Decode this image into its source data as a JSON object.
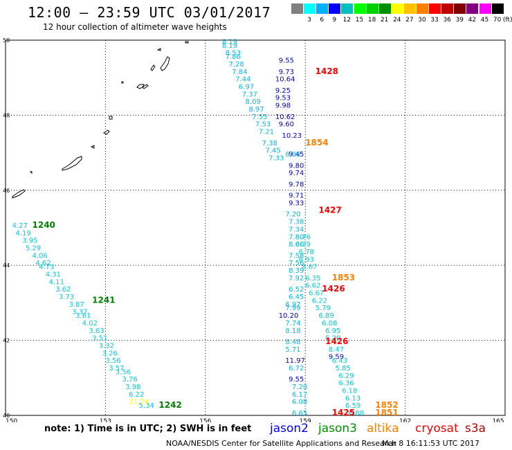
{
  "header": {
    "title": "12:00 – 23:59 UTC 03/01/2017",
    "subtitle": "12 hour collection of altimeter wave heights"
  },
  "legend": {
    "unit_label": "(ft)",
    "bins": [
      {
        "label": "",
        "color": "#808080"
      },
      {
        "label": "3",
        "color": "#00ffff"
      },
      {
        "label": "6",
        "color": "#00b0ff"
      },
      {
        "label": "9",
        "color": "#0000ff"
      },
      {
        "label": "12",
        "color": "#00c0c0"
      },
      {
        "label": "15",
        "color": "#00ff00"
      },
      {
        "label": "18",
        "color": "#00d000"
      },
      {
        "label": "21",
        "color": "#009000"
      },
      {
        "label": "24",
        "color": "#ffff00"
      },
      {
        "label": "27",
        "color": "#ffc000"
      },
      {
        "label": "30",
        "color": "#ff8000"
      },
      {
        "label": "33",
        "color": "#ff0000"
      },
      {
        "label": "36",
        "color": "#c00000"
      },
      {
        "label": "39",
        "color": "#800000"
      },
      {
        "label": "42",
        "color": "#800080"
      },
      {
        "label": "45",
        "color": "#ff00ff"
      },
      {
        "label": "70",
        "color": "#000000"
      }
    ]
  },
  "axes": {
    "lon_labels": [
      "150",
      "153",
      "156",
      "159",
      "162",
      "165"
    ],
    "lat_labels": [
      "50",
      "48",
      "46",
      "44",
      "42",
      "40"
    ],
    "lon_range": [
      150,
      165
    ],
    "lat_range": [
      40,
      50
    ]
  },
  "time_labels": [
    {
      "text": "1428",
      "lon": 159.3,
      "lat": 49.1,
      "color": "#ff0000"
    },
    {
      "text": "1854",
      "lon": 159.0,
      "lat": 47.2,
      "color": "#ff8000"
    },
    {
      "text": "1427",
      "lon": 159.4,
      "lat": 45.4,
      "color": "#ff0000"
    },
    {
      "text": "1853",
      "lon": 159.8,
      "lat": 43.6,
      "color": "#ff8000"
    },
    {
      "text": "1426",
      "lon": 159.5,
      "lat": 43.3,
      "color": "#ff0000"
    },
    {
      "text": "1426",
      "lon": 159.6,
      "lat": 41.9,
      "color": "#ff0000"
    },
    {
      "text": "1852",
      "lon": 161.1,
      "lat": 40.2,
      "color": "#ff8000"
    },
    {
      "text": "1851",
      "lon": 161.1,
      "lat": 40.0,
      "color": "#ff8000"
    },
    {
      "text": "1425",
      "lon": 159.8,
      "lat": 40.0,
      "color": "#ff0000"
    },
    {
      "text": "1240",
      "lon": 150.8,
      "lat": 45.0,
      "color": "#008000"
    },
    {
      "text": "1241",
      "lon": 152.6,
      "lat": 43.0,
      "color": "#008000"
    },
    {
      "text": "1242",
      "lon": 154.6,
      "lat": 40.2,
      "color": "#008000"
    }
  ],
  "tracks": {
    "jason2": {
      "color": "#0000cc",
      "points": [
        {
          "v": "9.55",
          "lon": 158.2,
          "lat": 49.4
        },
        {
          "v": "9.73",
          "lon": 158.2,
          "lat": 49.1
        },
        {
          "v": "10.64",
          "lon": 158.1,
          "lat": 48.9
        },
        {
          "v": "9.25",
          "lon": 158.1,
          "lat": 48.6
        },
        {
          "v": "9.53",
          "lon": 158.1,
          "lat": 48.4
        },
        {
          "v": "9.98",
          "lon": 158.1,
          "lat": 48.2
        },
        {
          "v": "10.62",
          "lon": 158.1,
          "lat": 47.9
        },
        {
          "v": "9.60",
          "lon": 158.2,
          "lat": 47.7
        },
        {
          "v": "10.23",
          "lon": 158.3,
          "lat": 47.4
        },
        {
          "v": "9.45",
          "lon": 158.5,
          "lat": 46.9
        },
        {
          "v": "9.80",
          "lon": 158.5,
          "lat": 46.6
        },
        {
          "v": "9.74",
          "lon": 158.5,
          "lat": 46.4
        },
        {
          "v": "9.78",
          "lon": 158.5,
          "lat": 46.1
        },
        {
          "v": "9.71",
          "lon": 158.5,
          "lat": 45.8
        },
        {
          "v": "9.33",
          "lon": 158.5,
          "lat": 45.6
        },
        {
          "v": "10.20",
          "lon": 158.2,
          "lat": 42.6
        },
        {
          "v": "11.97",
          "lon": 158.4,
          "lat": 41.4
        },
        {
          "v": "9.55",
          "lon": 158.5,
          "lat": 40.9
        },
        {
          "v": "9.59",
          "lon": 159.7,
          "lat": 41.5
        }
      ]
    },
    "jason3": {
      "color": "#009000",
      "points": []
    },
    "cyan_main": {
      "color": "#00b8e8",
      "points": [
        {
          "v": "8.19",
          "lon": 156.5,
          "lat": 49.9
        },
        {
          "v": "8.19",
          "lon": 156.5,
          "lat": 49.8
        },
        {
          "v": "8.53",
          "lon": 156.6,
          "lat": 49.6
        },
        {
          "v": "7.86",
          "lon": 156.6,
          "lat": 49.5
        },
        {
          "v": "7.28",
          "lon": 156.7,
          "lat": 49.3
        },
        {
          "v": "7.84",
          "lon": 156.8,
          "lat": 49.1
        },
        {
          "v": "7.44",
          "lon": 156.9,
          "lat": 48.9
        },
        {
          "v": "6.97",
          "lon": 157.0,
          "lat": 48.7
        },
        {
          "v": "7.37",
          "lon": 157.1,
          "lat": 48.5
        },
        {
          "v": "8.09",
          "lon": 157.2,
          "lat": 48.3
        },
        {
          "v": "8.97",
          "lon": 157.3,
          "lat": 48.1
        },
        {
          "v": "7.55",
          "lon": 157.4,
          "lat": 47.9
        },
        {
          "v": "7.53",
          "lon": 157.5,
          "lat": 47.7
        },
        {
          "v": "7.21",
          "lon": 157.6,
          "lat": 47.5
        },
        {
          "v": "7.38",
          "lon": 157.7,
          "lat": 47.2
        },
        {
          "v": "7.45",
          "lon": 157.8,
          "lat": 47.0
        },
        {
          "v": "7.33",
          "lon": 157.9,
          "lat": 46.8
        },
        {
          "v": "7.20",
          "lon": 158.4,
          "lat": 45.3
        },
        {
          "v": "7.38",
          "lon": 158.5,
          "lat": 45.1
        },
        {
          "v": "7.34",
          "lon": 158.5,
          "lat": 44.9
        },
        {
          "v": "7.80",
          "lon": 158.5,
          "lat": 44.7
        },
        {
          "v": "8.06",
          "lon": 158.5,
          "lat": 44.5
        },
        {
          "v": "7.58",
          "lon": 158.5,
          "lat": 44.2
        },
        {
          "v": "7.56",
          "lon": 158.5,
          "lat": 44.0
        },
        {
          "v": "8.39",
          "lon": 158.5,
          "lat": 43.8
        },
        {
          "v": "7.92",
          "lon": 158.5,
          "lat": 43.6
        },
        {
          "v": "6.52",
          "lon": 158.5,
          "lat": 43.3
        },
        {
          "v": "6.45",
          "lon": 158.5,
          "lat": 43.1
        },
        {
          "v": "6.97",
          "lon": 158.4,
          "lat": 42.9
        },
        {
          "v": "7.99",
          "lon": 158.4,
          "lat": 42.8
        },
        {
          "v": "7.74",
          "lon": 158.4,
          "lat": 42.4
        },
        {
          "v": "8.18",
          "lon": 158.4,
          "lat": 42.2
        },
        {
          "v": "8.48",
          "lon": 158.4,
          "lat": 41.9
        },
        {
          "v": "5.71",
          "lon": 158.4,
          "lat": 41.7
        },
        {
          "v": "6.72",
          "lon": 158.5,
          "lat": 41.2
        },
        {
          "v": "7.20",
          "lon": 158.6,
          "lat": 40.7
        },
        {
          "v": "6.17",
          "lon": 158.6,
          "lat": 40.5
        },
        {
          "v": "6.08",
          "lon": 158.6,
          "lat": 40.3
        },
        {
          "v": "6.65",
          "lon": 158.6,
          "lat": 40.0
        }
      ]
    },
    "cyan_second": {
      "color": "#00c8d8",
      "points": [
        {
          "v": "6.85",
          "lon": 158.4,
          "lat": 46.9
        },
        {
          "v": "8.76",
          "lon": 158.7,
          "lat": 44.7
        },
        {
          "v": "8.39",
          "lon": 158.7,
          "lat": 44.5
        },
        {
          "v": "6.78",
          "lon": 158.8,
          "lat": 44.3
        },
        {
          "v": "6.93",
          "lon": 158.8,
          "lat": 44.1
        },
        {
          "v": "8.67",
          "lon": 158.9,
          "lat": 43.9
        },
        {
          "v": "6.35",
          "lon": 159.0,
          "lat": 43.6
        },
        {
          "v": "6.62",
          "lon": 159.0,
          "lat": 43.4
        },
        {
          "v": "6.67",
          "lon": 159.1,
          "lat": 43.2
        },
        {
          "v": "6.22",
          "lon": 159.2,
          "lat": 43.0
        },
        {
          "v": "5.79",
          "lon": 159.3,
          "lat": 42.8
        },
        {
          "v": "6.89",
          "lon": 159.4,
          "lat": 42.6
        },
        {
          "v": "6.08",
          "lon": 159.5,
          "lat": 42.4
        },
        {
          "v": "6.95",
          "lon": 159.6,
          "lat": 42.2
        },
        {
          "v": "5.20",
          "lon": 159.6,
          "lat": 42.0
        },
        {
          "v": "8.47",
          "lon": 159.7,
          "lat": 41.7
        },
        {
          "v": "6.43",
          "lon": 159.8,
          "lat": 41.4
        },
        {
          "v": "5.85",
          "lon": 159.9,
          "lat": 41.2
        },
        {
          "v": "6.29",
          "lon": 160.0,
          "lat": 41.0
        },
        {
          "v": "6.36",
          "lon": 160.0,
          "lat": 40.8
        },
        {
          "v": "6.18",
          "lon": 160.1,
          "lat": 40.6
        },
        {
          "v": "6.13",
          "lon": 160.2,
          "lat": 40.4
        },
        {
          "v": "6.59",
          "lon": 160.2,
          "lat": 40.2
        },
        {
          "v": "6.88",
          "lon": 160.3,
          "lat": 40.0
        }
      ]
    },
    "cyan_west": {
      "color": "#00c8e0",
      "points": [
        {
          "v": "4.27",
          "lon": 150.2,
          "lat": 45.0
        },
        {
          "v": "4.19",
          "lon": 150.3,
          "lat": 44.8
        },
        {
          "v": "3.95",
          "lon": 150.5,
          "lat": 44.6
        },
        {
          "v": "5.29",
          "lon": 150.6,
          "lat": 44.4
        },
        {
          "v": "4.06",
          "lon": 150.8,
          "lat": 44.2
        },
        {
          "v": "4.62",
          "lon": 150.9,
          "lat": 44.0
        },
        {
          "v": "4.73",
          "lon": 151.0,
          "lat": 43.9
        },
        {
          "v": "4.31",
          "lon": 151.2,
          "lat": 43.7
        },
        {
          "v": "4.11",
          "lon": 151.3,
          "lat": 43.5
        },
        {
          "v": "3.62",
          "lon": 151.5,
          "lat": 43.3
        },
        {
          "v": "3.73",
          "lon": 151.6,
          "lat": 43.1
        },
        {
          "v": "3.87",
          "lon": 151.9,
          "lat": 42.9
        },
        {
          "v": "3.37",
          "lon": 152.0,
          "lat": 42.7
        },
        {
          "v": "3.61",
          "lon": 152.1,
          "lat": 42.6
        },
        {
          "v": "4.02",
          "lon": 152.3,
          "lat": 42.4
        },
        {
          "v": "3.63",
          "lon": 152.5,
          "lat": 42.2
        },
        {
          "v": "3.51",
          "lon": 152.6,
          "lat": 42.0
        },
        {
          "v": "3.32",
          "lon": 152.8,
          "lat": 41.8
        },
        {
          "v": "3.26",
          "lon": 152.9,
          "lat": 41.6
        },
        {
          "v": "3.56",
          "lon": 153.0,
          "lat": 41.4
        },
        {
          "v": "3.57",
          "lon": 153.1,
          "lat": 41.2
        },
        {
          "v": "3.56",
          "lon": 153.3,
          "lat": 41.1
        },
        {
          "v": "3.76",
          "lon": 153.5,
          "lat": 40.9
        },
        {
          "v": "3.98",
          "lon": 153.6,
          "lat": 40.7
        },
        {
          "v": "6.22",
          "lon": 153.7,
          "lat": 40.5
        },
        {
          "v": "5.34",
          "lon": 154.0,
          "lat": 40.2
        }
      ]
    },
    "yellow": {
      "color": "#ffff00",
      "points": [
        {
          "v": "21.74",
          "lon": 153.7,
          "lat": 40.3
        }
      ]
    }
  },
  "footer": {
    "note": "note: 1) Time is in UTC; 2) SWH is in feet",
    "satellites": [
      {
        "name": "jason2",
        "color": "#0000ff"
      },
      {
        "name": "jason3",
        "color": "#009000"
      },
      {
        "name": "altika",
        "color": "#ff8000"
      },
      {
        "name": "cryosat",
        "color": "#ff0000"
      },
      {
        "name": "s3a",
        "color": "#c00000"
      }
    ],
    "credit": "NOAA/NESDIS Center for Satellite Applications and Research",
    "timestamp": "Mar  8 16:11:53 UTC 2017"
  }
}
